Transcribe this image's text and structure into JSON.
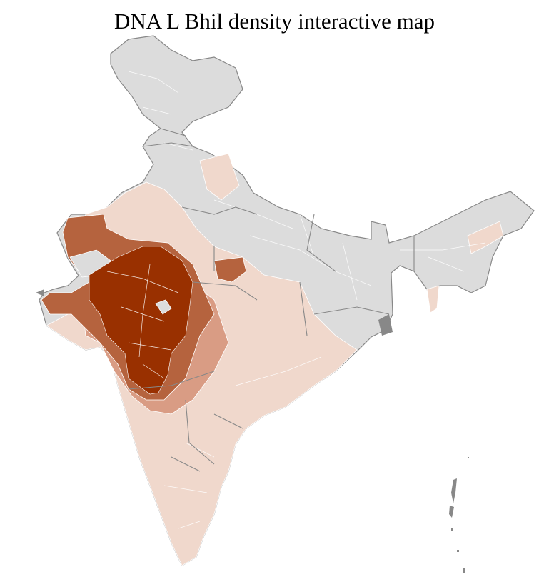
{
  "title": "DNA L Bhil density interactive map",
  "map": {
    "type": "choropleth",
    "region": "India districts",
    "colors": {
      "no_data": "#dcdcdc",
      "low": "#f0d8cc",
      "medium_low": "#d99c84",
      "medium_high": "#b5633e",
      "high": "#993000",
      "state_border": "#888888",
      "district_border": "#ffffff"
    }
  }
}
